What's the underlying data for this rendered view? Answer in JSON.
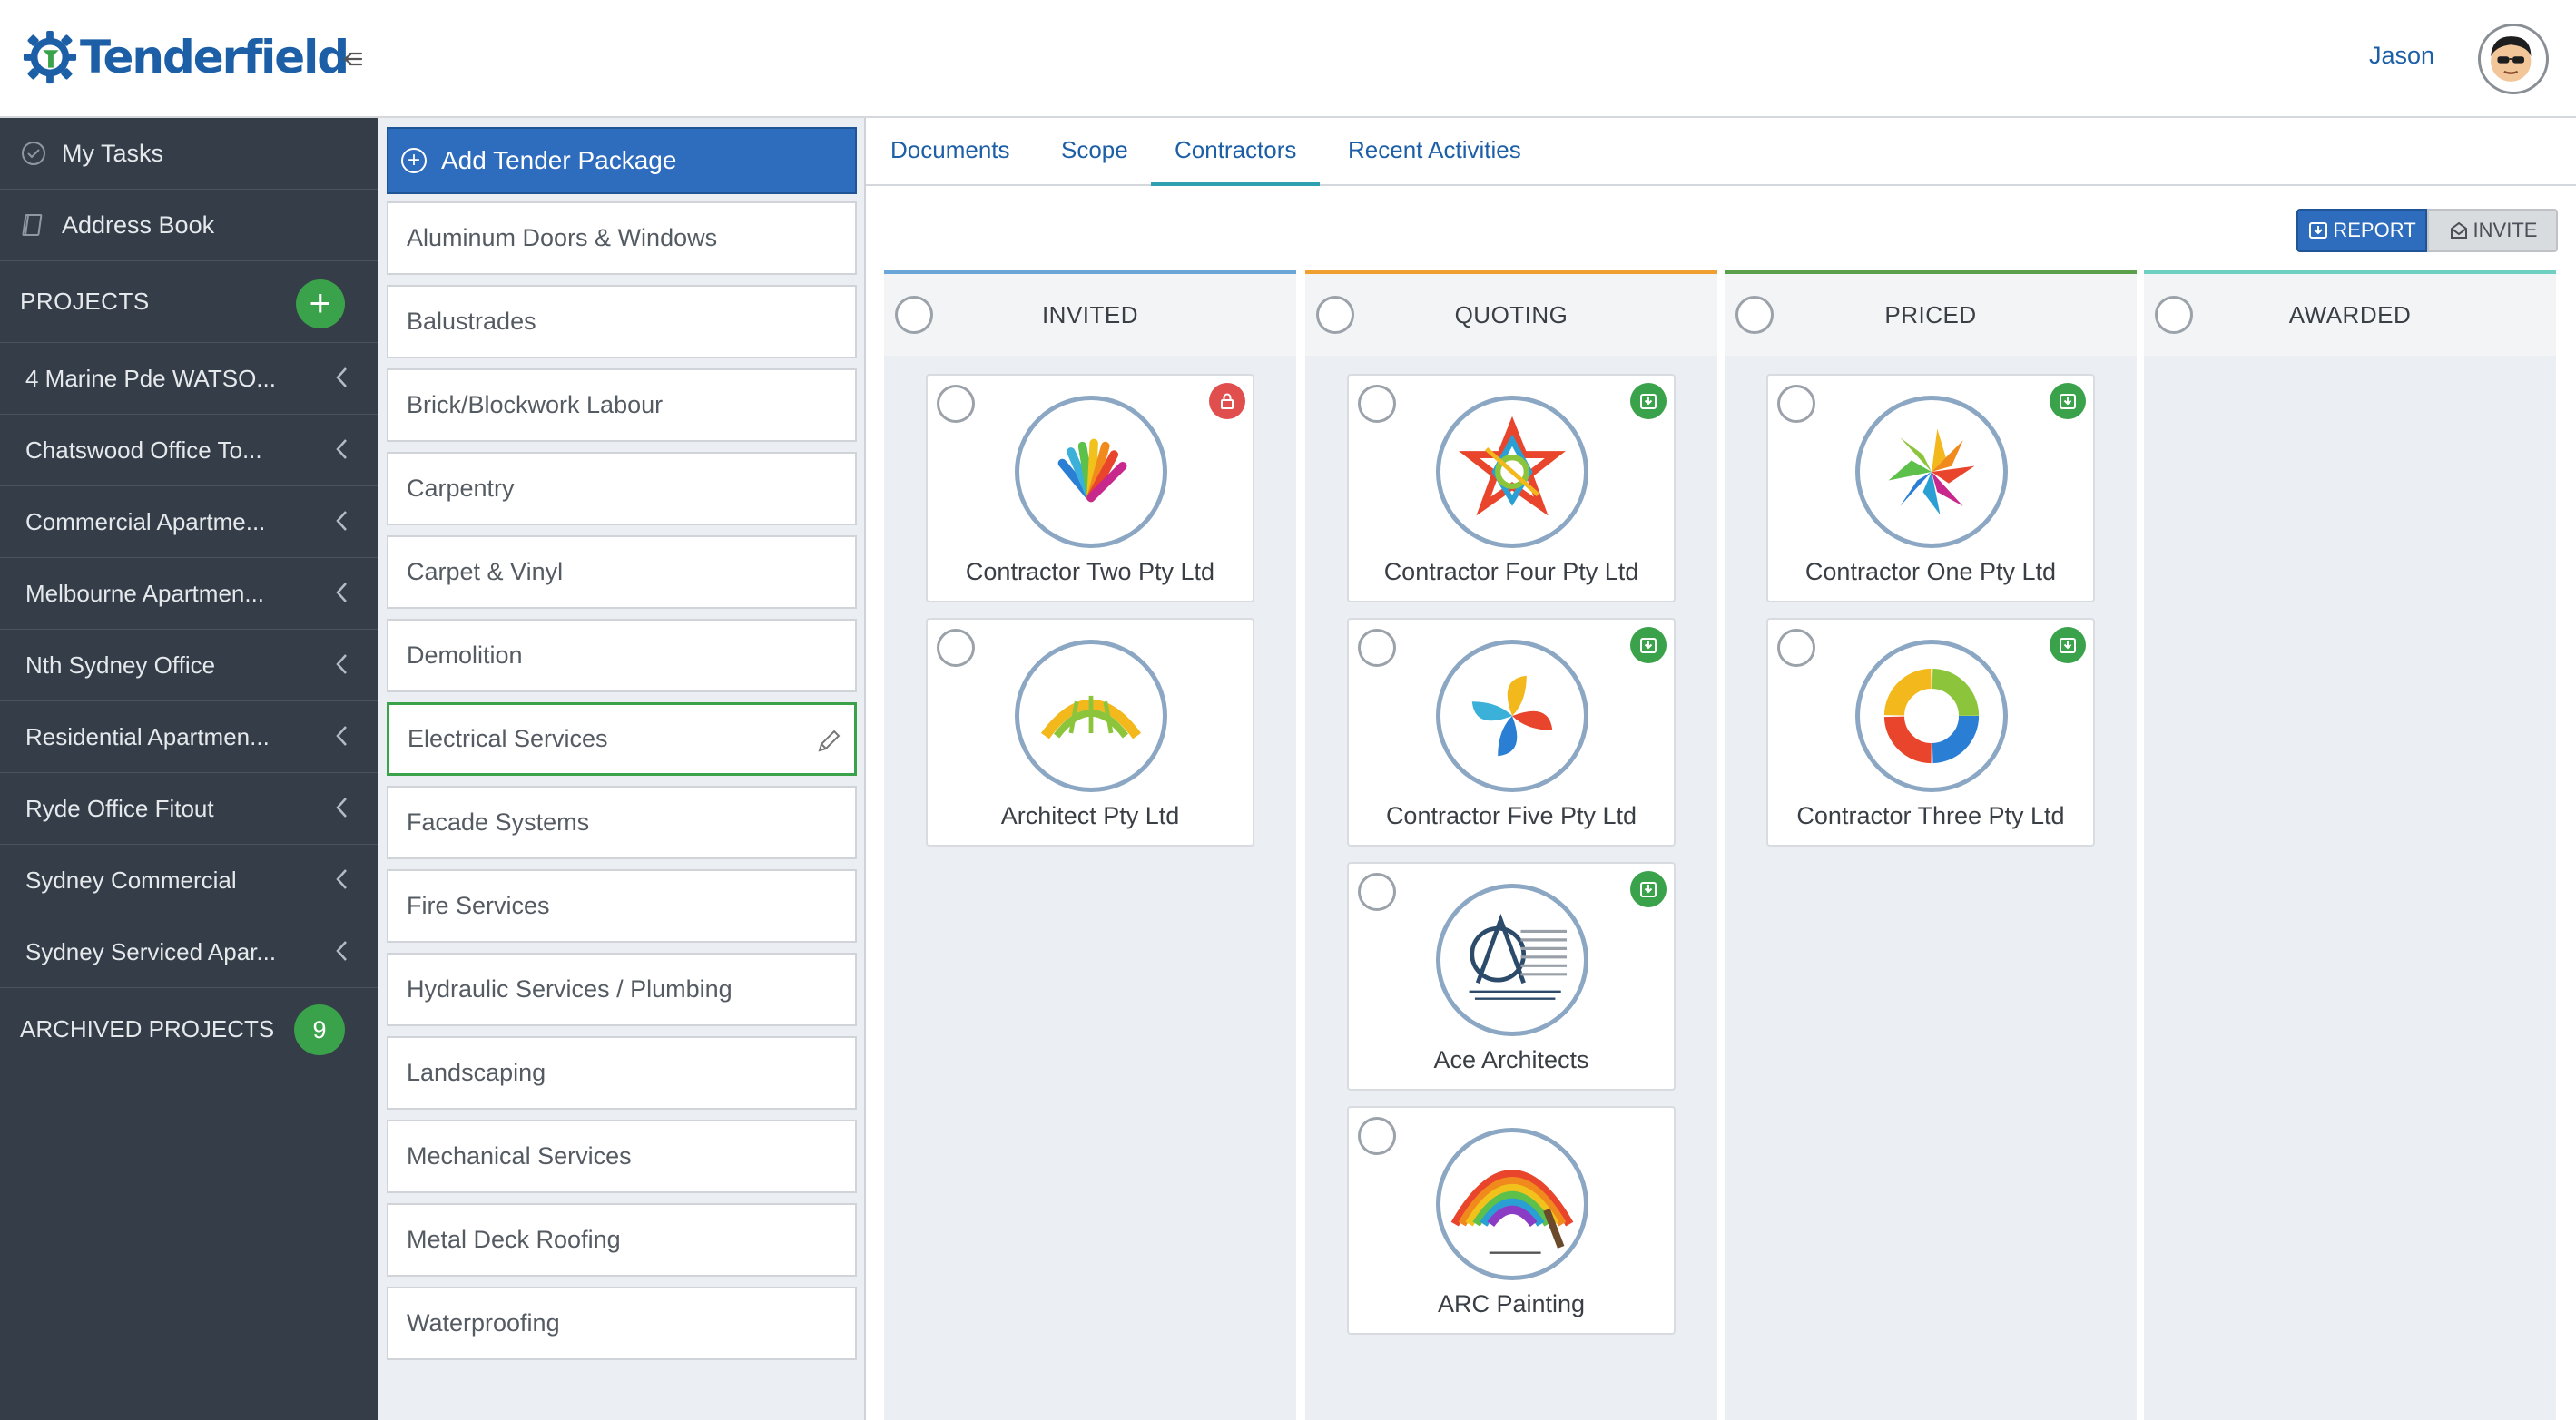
{
  "brand": {
    "name": "Tenderfield",
    "color": "#1d5fa6"
  },
  "user": {
    "name": "Jason"
  },
  "sidebar": {
    "items": [
      {
        "label": "My Tasks",
        "icon": "check-circle-icon"
      },
      {
        "label": "Address Book",
        "icon": "book-icon"
      }
    ],
    "projects_label": "PROJECTS",
    "projects": [
      "4 Marine Pde WATSO...",
      "Chatswood Office To...",
      "Commercial Apartme...",
      "Melbourne Apartmen...",
      "Nth Sydney Office",
      "Residential Apartmen...",
      "Ryde Office Fitout",
      "Sydney Commercial",
      "Sydney Serviced Apar..."
    ],
    "archived_label": "ARCHIVED PROJECTS",
    "archived_count": "9"
  },
  "packages": {
    "add_label": "Add Tender Package",
    "items": [
      "Aluminum Doors & Windows",
      "Balustrades",
      "Brick/Blockwork Labour",
      "Carpentry",
      "Carpet & Vinyl",
      "Demolition",
      "Electrical Services",
      "Facade Systems",
      "Fire Services",
      "Hydraulic Services / Plumbing",
      "Landscaping",
      "Mechanical Services",
      "Metal Deck Roofing",
      "Waterproofing"
    ],
    "active": "Electrical Services"
  },
  "tabs": [
    "Documents",
    "Scope",
    "Contractors",
    "Recent Activities"
  ],
  "active_tab": "Contractors",
  "actions": {
    "report": "REPORT",
    "invite": "INVITE"
  },
  "lanes": [
    {
      "title": "INVITED",
      "accent": "#6aa7d8",
      "cards": [
        {
          "name": "Contractor Two Pty Ltd",
          "badge": "lock-icon"
        },
        {
          "name": "Architect Pty Ltd",
          "badge": ""
        }
      ]
    },
    {
      "title": "QUOTING",
      "accent": "#f0a030",
      "cards": [
        {
          "name": "Contractor Four Pty Ltd",
          "badge": "download-icon"
        },
        {
          "name": "Contractor Five Pty Ltd",
          "badge": "download-icon"
        },
        {
          "name": "Ace Architects",
          "badge": "download-icon"
        },
        {
          "name": "ARC Painting",
          "badge": ""
        }
      ]
    },
    {
      "title": "PRICED",
      "accent": "#5aa04a",
      "cards": [
        {
          "name": "Contractor One Pty Ltd",
          "badge": "download-icon"
        },
        {
          "name": "Contractor Three Pty Ltd",
          "badge": "download-icon"
        }
      ]
    },
    {
      "title": "AWARDED",
      "accent": "#6dd0c0",
      "cards": []
    }
  ]
}
